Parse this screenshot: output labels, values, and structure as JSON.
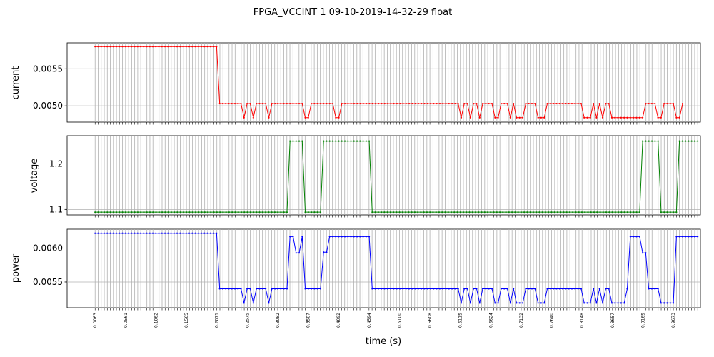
{
  "chart_data": {
    "type": "line",
    "title": "FPGA_VCCINT   1   09-10-2019-14-32-29   float",
    "xlabel": "time (s)",
    "x_tick_labels": [
      "0.0063",
      "0.0561",
      "0.1062",
      "0.1565",
      "0.2071",
      "0.2575",
      "0.3082",
      "0.3587",
      "0.4092",
      "0.4594",
      "0.5100",
      "0.5608",
      "0.6115",
      "0.6624",
      "0.7132",
      "0.7640",
      "0.8148",
      "0.8657",
      "0.9165",
      "0.9673"
    ],
    "xlim": [
      -0.04,
      1.007
    ],
    "series": [
      {
        "name": "current",
        "ylabel": "current",
        "color": "#ff0000",
        "ylim": [
          0.00478,
          0.00585
        ],
        "yticks": [
          0.005,
          0.0055
        ],
        "ytick_labels": [
          "0.0050",
          "0.0055"
        ],
        "segments": [
          {
            "x0": 0.0063,
            "x1": 0.2071,
            "pattern": [
              0.0058
            ]
          },
          {
            "x0": 0.2122,
            "x1": 0.2475,
            "pattern": [
              0.00503
            ]
          },
          {
            "x0": 0.2525,
            "x1": 0.3037,
            "pattern": [
              0.00484,
              0.00503,
              0.00503,
              0.00484,
              0.00503,
              0.00503,
              0.00503,
              0.00503,
              0.00484,
              0.00503,
              0.00503
            ]
          },
          {
            "x0": 0.3082,
            "x1": 0.3487,
            "pattern": [
              0.00503
            ]
          },
          {
            "x0": 0.3537,
            "x1": 0.3587,
            "pattern": [
              0.00484
            ]
          },
          {
            "x0": 0.3637,
            "x1": 0.3992,
            "pattern": [
              0.00503
            ]
          },
          {
            "x0": 0.4042,
            "x1": 0.4092,
            "pattern": [
              0.00484
            ]
          },
          {
            "x0": 0.4142,
            "x1": 0.6065,
            "pattern": [
              0.00503
            ]
          },
          {
            "x0": 0.6115,
            "x1": 0.764,
            "pattern": [
              0.00484,
              0.00503,
              0.00503,
              0.00484,
              0.00503,
              0.00503,
              0.00484,
              0.00503,
              0.00503,
              0.00503,
              0.00503,
              0.00484,
              0.00484,
              0.00503,
              0.00503,
              0.00503,
              0.00484,
              0.00503,
              0.00484,
              0.00484,
              0.00484,
              0.00503,
              0.00503,
              0.00503,
              0.00503,
              0.00484,
              0.00484,
              0.00484,
              0.00503,
              0.00503,
              0.00503,
              0.00484
            ]
          },
          {
            "x0": 0.769,
            "x1": 0.8098,
            "pattern": [
              0.00503
            ]
          },
          {
            "x0": 0.8148,
            "x1": 0.8657,
            "pattern": [
              0.00484,
              0.00484,
              0.00484,
              0.00503,
              0.00484,
              0.00503,
              0.00484,
              0.00503,
              0.00503,
              0.00484,
              0.00484
            ]
          },
          {
            "x0": 0.8707,
            "x1": 0.9115,
            "pattern": [
              0.00484
            ]
          },
          {
            "x0": 0.9165,
            "x1": 0.9775,
            "pattern": [
              0.00503,
              0.00503,
              0.00503,
              0.00503,
              0.00484,
              0.00484,
              0.00503,
              0.00503,
              0.00503,
              0.00503,
              0.00484,
              0.00484,
              0.00503
            ]
          }
        ]
      },
      {
        "name": "voltage",
        "ylabel": "voltage",
        "color": "#008000",
        "ylim": [
          1.088,
          1.262
        ],
        "yticks": [
          1.1,
          1.2
        ],
        "ytick_labels": [
          "1.1",
          "1.2"
        ],
        "segments": [
          {
            "x0": 0.0063,
            "x1": 0.3235,
            "pattern": [
              1.094
            ]
          },
          {
            "x0": 0.3285,
            "x1": 0.3487,
            "pattern": [
              1.25
            ]
          },
          {
            "x0": 0.3537,
            "x1": 0.379,
            "pattern": [
              1.094
            ]
          },
          {
            "x0": 0.384,
            "x1": 0.4594,
            "pattern": [
              1.25
            ]
          },
          {
            "x0": 0.4644,
            "x1": 0.9065,
            "pattern": [
              1.094
            ]
          },
          {
            "x0": 0.9115,
            "x1": 0.937,
            "pattern": [
              1.25
            ]
          },
          {
            "x0": 0.942,
            "x1": 0.9673,
            "pattern": [
              1.094
            ]
          },
          {
            "x0": 0.9723,
            "x1": 1.0025,
            "pattern": [
              1.25
            ]
          }
        ]
      },
      {
        "name": "power",
        "ylabel": "power",
        "color": "#0000ff",
        "ylim": [
          0.00512,
          0.00628
        ],
        "yticks": [
          0.0055,
          0.006
        ],
        "ytick_labels": [
          "0.0055",
          "0.0060"
        ],
        "segments": [
          {
            "x0": 0.0063,
            "x1": 0.2071,
            "pattern": [
              0.00622
            ]
          },
          {
            "x0": 0.2122,
            "x1": 0.2475,
            "pattern": [
              0.0054
            ]
          },
          {
            "x0": 0.2525,
            "x1": 0.3037,
            "pattern": [
              0.00519,
              0.0054,
              0.0054,
              0.00519,
              0.0054,
              0.0054,
              0.0054,
              0.0054,
              0.00519,
              0.0054,
              0.0054
            ]
          },
          {
            "x0": 0.3082,
            "x1": 0.3235,
            "pattern": [
              0.0054
            ]
          },
          {
            "x0": 0.3285,
            "x1": 0.3487,
            "pattern": [
              0.00617,
              0.00617,
              0.00593,
              0.00593
            ]
          },
          {
            "x0": 0.3537,
            "x1": 0.379,
            "pattern": [
              0.0054
            ]
          },
          {
            "x0": 0.384,
            "x1": 0.389,
            "pattern": [
              0.00594
            ]
          },
          {
            "x0": 0.394,
            "x1": 0.4594,
            "pattern": [
              0.00617
            ]
          },
          {
            "x0": 0.4644,
            "x1": 0.6065,
            "pattern": [
              0.0054
            ]
          },
          {
            "x0": 0.6115,
            "x1": 0.764,
            "pattern": [
              0.00519,
              0.0054,
              0.0054,
              0.00519,
              0.0054,
              0.0054,
              0.00519,
              0.0054,
              0.0054,
              0.0054,
              0.0054,
              0.00519,
              0.00519,
              0.0054,
              0.0054,
              0.0054,
              0.00519,
              0.0054,
              0.00519,
              0.00519,
              0.00519,
              0.0054,
              0.0054,
              0.0054,
              0.0054,
              0.00519,
              0.00519,
              0.00519,
              0.0054,
              0.0054,
              0.0054,
              0.00519
            ]
          },
          {
            "x0": 0.769,
            "x1": 0.8098,
            "pattern": [
              0.0054
            ]
          },
          {
            "x0": 0.8148,
            "x1": 0.8657,
            "pattern": [
              0.00519,
              0.00519,
              0.00519,
              0.0054,
              0.00519,
              0.0054,
              0.00519,
              0.0054,
              0.0054,
              0.00519,
              0.00519
            ]
          },
          {
            "x0": 0.8707,
            "x1": 0.881,
            "pattern": [
              0.00519
            ]
          },
          {
            "x0": 0.886,
            "x1": 0.9065,
            "pattern": [
              0.0054,
              0.00617,
              0.00617,
              0.00617,
              0.00617
            ]
          },
          {
            "x0": 0.9115,
            "x1": 0.9165,
            "pattern": [
              0.00593
            ]
          },
          {
            "x0": 0.9215,
            "x1": 0.937,
            "pattern": [
              0.0054
            ]
          },
          {
            "x0": 0.942,
            "x1": 0.9673,
            "pattern": [
              0.00519,
              0.00519,
              0.00519,
              0.00519,
              0.00519,
              0.00617,
              0.00617,
              0.00593,
              0.00617,
              0.00617
            ]
          },
          {
            "x0": 0.9723,
            "x1": 1.0025,
            "pattern": [
              0.00617
            ]
          }
        ]
      }
    ]
  }
}
